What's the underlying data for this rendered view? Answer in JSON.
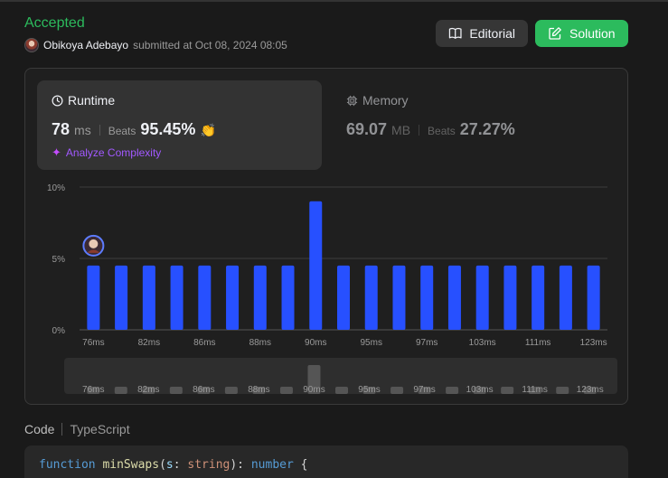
{
  "submission": {
    "status": "Accepted",
    "username": "Obikoya Adebayo",
    "submitted_text": "submitted at Oct 08, 2024 08:05"
  },
  "actions": {
    "editorial_label": "Editorial",
    "solution_label": "Solution"
  },
  "runtime": {
    "title": "Runtime",
    "value": "78",
    "unit": "ms",
    "beats_label": "Beats",
    "beats_value": "95.45%",
    "analyze_label": "Analyze Complexity"
  },
  "memory": {
    "title": "Memory",
    "value": "69.07",
    "unit": "MB",
    "beats_label": "Beats",
    "beats_value": "27.27%"
  },
  "colors": {
    "accepted": "#2cbb5d",
    "bar": "#2750ff",
    "analyze": "#a259ff"
  },
  "chart_data": {
    "type": "bar",
    "ylim": [
      0,
      10
    ],
    "y_ticks": [
      "0%",
      "5%",
      "10%"
    ],
    "x_ticks": [
      "76ms",
      "82ms",
      "86ms",
      "88ms",
      "90ms",
      "95ms",
      "97ms",
      "103ms",
      "111ms",
      "123ms"
    ],
    "values": [
      4.5,
      4.5,
      4.5,
      4.5,
      4.5,
      4.5,
      4.5,
      4.5,
      9.0,
      4.5,
      4.5,
      4.5,
      4.5,
      4.5,
      4.5,
      4.5,
      4.5,
      4.5,
      4.5
    ],
    "user_bar_index": 0
  },
  "navigator_data": {
    "values": [
      1,
      1,
      1,
      1,
      1,
      1,
      1,
      1,
      2,
      1,
      1,
      1,
      1,
      1,
      1,
      1,
      1,
      1,
      1
    ]
  },
  "code": {
    "tab_label": "Code",
    "language": "TypeScript",
    "kw": "function",
    "fn": "minSwaps",
    "param": "s",
    "type1": "string",
    "type2": "number"
  }
}
